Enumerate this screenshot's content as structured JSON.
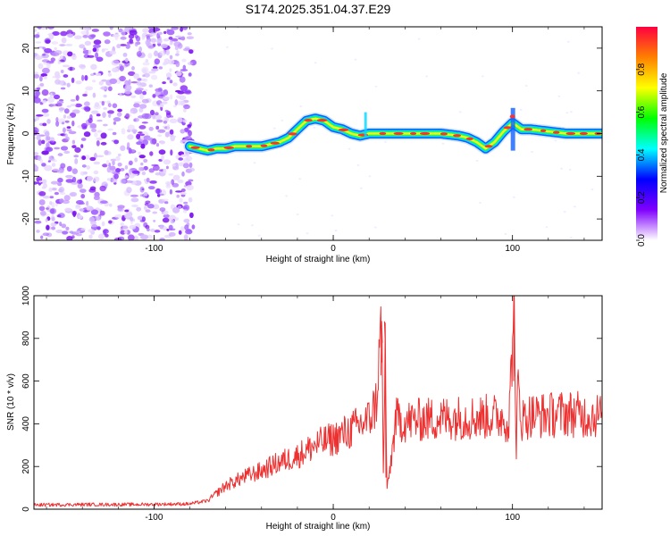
{
  "figure_title": "S174.2025.351.04.37.E29",
  "chart_data": [
    {
      "type": "heatmap",
      "title": "S174.2025.351.04.37.E29",
      "xlabel": "Height of straight line (km)",
      "ylabel": "Frequency (Hz)",
      "xlim": [
        -167,
        150
      ],
      "ylim": [
        -25,
        25
      ],
      "xticks": [
        -100,
        0,
        100
      ],
      "yticks": [
        -20,
        -10,
        0,
        10,
        20
      ],
      "noise_region_x": [
        -167,
        -78
      ],
      "ridge": {
        "x": [
          -80,
          -75,
          -70,
          -65,
          -60,
          -55,
          -50,
          -45,
          -40,
          -35,
          -30,
          -25,
          -20,
          -15,
          -10,
          -5,
          0,
          5,
          10,
          15,
          20,
          25,
          30,
          40,
          50,
          60,
          70,
          75,
          80,
          85,
          90,
          95,
          100,
          105,
          110,
          120,
          130,
          140,
          150
        ],
        "freq": [
          -3,
          -3.5,
          -4,
          -3.5,
          -3.5,
          -3,
          -3,
          -3,
          -3,
          -2.5,
          -2,
          -1,
          1,
          3,
          3.5,
          3,
          1.5,
          1,
          0,
          -0.5,
          0,
          0,
          0,
          0,
          0,
          0,
          -0.5,
          -1,
          -2,
          -3.5,
          -2,
          0.5,
          2.5,
          1,
          1,
          0.5,
          0,
          0,
          0
        ]
      },
      "colorbar": {
        "label": "Normalized spectral amplitude",
        "ticks": [
          "0.0",
          "0.2",
          "0.4",
          "0.6",
          "0.8"
        ],
        "tick_values": [
          0,
          0.2,
          0.4,
          0.6,
          0.8
        ],
        "range": [
          0,
          1
        ],
        "colors": [
          "#ffffff",
          "#8000ff",
          "#0000ff",
          "#00ffff",
          "#00ff00",
          "#ffff00",
          "#ff8000",
          "#ff0040"
        ]
      }
    },
    {
      "type": "line",
      "xlabel": "Height of straight line (km)",
      "ylabel": "SNR (10 * v/v)",
      "xlim": [
        -167,
        150
      ],
      "ylim": [
        0,
        1000
      ],
      "xticks": [
        -100,
        0,
        100
      ],
      "yticks": [
        0,
        200,
        400,
        600,
        800,
        1000
      ],
      "series": [
        {
          "name": "SNR",
          "color": "#ee3030",
          "x": [
            -167,
            -140,
            -110,
            -80,
            -70,
            -60,
            -50,
            -40,
            -30,
            -20,
            -10,
            0,
            10,
            20,
            24,
            27,
            28,
            29,
            30,
            35,
            40,
            50,
            60,
            70,
            80,
            90,
            95,
            98,
            101,
            102,
            103,
            105,
            110,
            120,
            130,
            140,
            150
          ],
          "y": [
            20,
            22,
            22,
            25,
            40,
            110,
            150,
            180,
            220,
            250,
            300,
            330,
            370,
            420,
            500,
            880,
            120,
            780,
            80,
            420,
            410,
            420,
            425,
            430,
            430,
            435,
            430,
            400,
            1000,
            150,
            620,
            420,
            440,
            440,
            450,
            440,
            440
          ]
        }
      ]
    }
  ]
}
